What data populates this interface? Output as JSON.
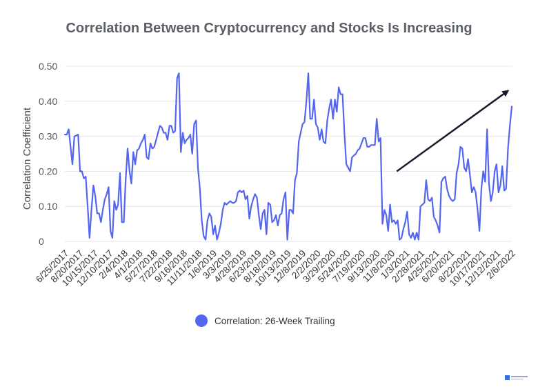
{
  "title": "Correlation Between Cryptocurrency and Stocks Is Increasing",
  "colors": {
    "series": "#5465f0",
    "arrow": "#1a1a2e",
    "grid": "#e6e6e6",
    "title": "#5b5f66"
  },
  "chart_data": {
    "type": "line",
    "title": "Correlation Between Cryptocurrency and Stocks Is Increasing",
    "ylabel": "Correlation Coefficient",
    "xlabel": "",
    "ylim": [
      0,
      0.5
    ],
    "grid": true,
    "legend_position": "bottom",
    "y_ticks": [
      "0.50",
      "0.40",
      "0.30",
      "0.20",
      "0.10",
      "0"
    ],
    "x_ticks": [
      "6/25/2017",
      "8/20/2017",
      "10/15/2017",
      "12/10/2017",
      "2/4/2018",
      "4/1/2018",
      "5/27/2018",
      "7/22/2018",
      "9/16/2018",
      "11/11/2018",
      "1/6/2019",
      "3/3/2019",
      "4/28/2019",
      "6/23/2019",
      "8/18/2019",
      "10/13/2019",
      "12/8/2019",
      "2/2/2020",
      "3/29/2020",
      "5/24/2020",
      "7/19/2020",
      "9/13/2020",
      "11/8/2020",
      "1/3/2021",
      "2/28/2021",
      "4/25/2021",
      "6/20/2021",
      "8/22/2021",
      "10/17/2021",
      "12/12/2021",
      "2/6/2022"
    ],
    "x_start": "6/25/2017",
    "x_end": "2/6/2022",
    "annotation": {
      "type": "arrow",
      "from": [
        "11/29/2020",
        0.2
      ],
      "to": [
        "1/23/2022",
        0.43
      ]
    },
    "series": [
      {
        "name": "Correlation: 26-Week Trailing",
        "values": [
          0.305,
          0.305,
          0.32,
          0.27,
          0.22,
          0.3,
          0.302,
          0.305,
          0.2,
          0.2,
          0.18,
          0.185,
          0.1,
          0.01,
          0.09,
          0.16,
          0.13,
          0.08,
          0.08,
          0.055,
          0.09,
          0.12,
          0.135,
          0.155,
          0.03,
          0.01,
          0.115,
          0.09,
          0.105,
          0.195,
          0.055,
          0.055,
          0.175,
          0.265,
          0.2,
          0.165,
          0.255,
          0.22,
          0.26,
          0.265,
          0.28,
          0.29,
          0.305,
          0.24,
          0.235,
          0.28,
          0.265,
          0.27,
          0.29,
          0.31,
          0.33,
          0.325,
          0.31,
          0.31,
          0.29,
          0.33,
          0.33,
          0.31,
          0.315,
          0.465,
          0.48,
          0.255,
          0.31,
          0.28,
          0.29,
          0.295,
          0.305,
          0.25,
          0.335,
          0.345,
          0.21,
          0.15,
          0.06,
          0.015,
          0.005,
          0.06,
          0.08,
          0.07,
          0.02,
          0.045,
          0.005,
          0.025,
          0.05,
          0.09,
          0.11,
          0.105,
          0.11,
          0.115,
          0.11,
          0.11,
          0.115,
          0.14,
          0.145,
          0.14,
          0.145,
          0.12,
          0.13,
          0.065,
          0.1,
          0.12,
          0.135,
          0.125,
          0.075,
          0.035,
          0.08,
          0.09,
          0.02,
          0.11,
          0.105,
          0.055,
          0.06,
          0.075,
          0.045,
          0.075,
          0.08,
          0.12,
          0.14,
          0.005,
          0.09,
          0.09,
          0.08,
          0.175,
          0.195,
          0.285,
          0.31,
          0.335,
          0.34,
          0.4,
          0.48,
          0.35,
          0.35,
          0.405,
          0.335,
          0.325,
          0.29,
          0.32,
          0.285,
          0.28,
          0.345,
          0.38,
          0.405,
          0.35,
          0.405,
          0.37,
          0.44,
          0.42,
          0.42,
          0.31,
          0.22,
          0.21,
          0.2,
          0.24,
          0.245,
          0.25,
          0.26,
          0.265,
          0.28,
          0.295,
          0.295,
          0.27,
          0.27,
          0.275,
          0.275,
          0.275,
          0.35,
          0.285,
          0.295,
          0.05,
          0.09,
          0.075,
          0.03,
          0.105,
          0.055,
          0.06,
          0.05,
          0.06,
          0.005,
          0.01,
          0.035,
          0.055,
          0.085,
          0.02,
          0.01,
          0.025,
          0.005,
          0.025,
          0.005,
          0.1,
          0.105,
          0.11,
          0.175,
          0.12,
          0.115,
          0.125,
          0.07,
          0.06,
          0.045,
          0.025,
          0.17,
          0.18,
          0.185,
          0.15,
          0.13,
          0.12,
          0.115,
          0.12,
          0.195,
          0.22,
          0.27,
          0.265,
          0.21,
          0.2,
          0.235,
          0.19,
          0.14,
          0.155,
          0.14,
          0.09,
          0.03,
          0.15,
          0.2,
          0.17,
          0.32,
          0.165,
          0.115,
          0.14,
          0.2,
          0.22,
          0.14,
          0.16,
          0.215,
          0.145,
          0.15,
          0.265,
          0.33,
          0.385
        ]
      }
    ]
  },
  "legend": {
    "label": "Correlation: 26-Week Trailing"
  },
  "logo_icon": "brand-logo-icon"
}
